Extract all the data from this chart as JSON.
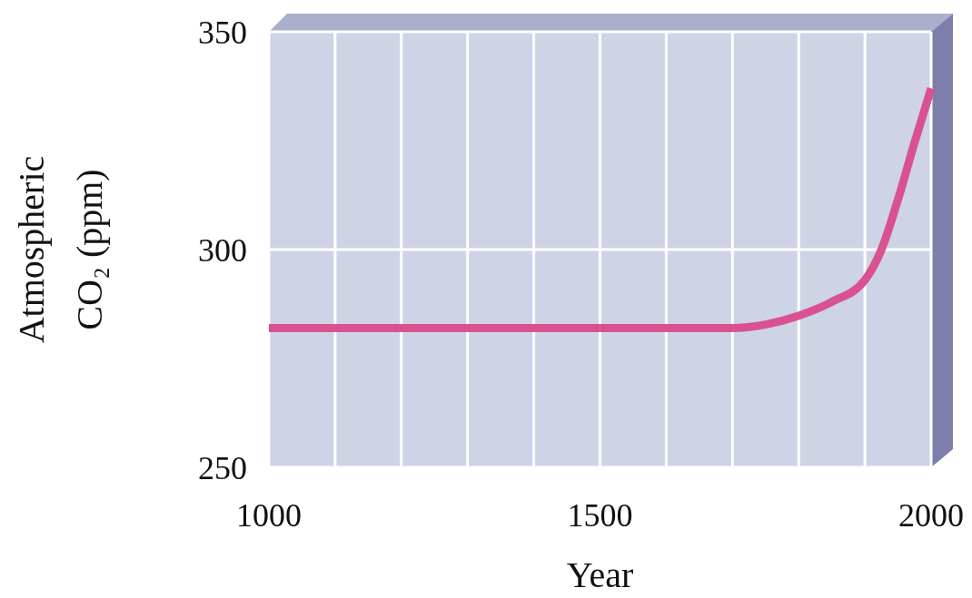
{
  "chart_data": {
    "type": "line",
    "xlabel": "Year",
    "ylabel": "Atmospheric CO₂ (ppm)",
    "x": [
      1000,
      1700,
      1750,
      1800,
      1850,
      1900,
      1925,
      1950,
      1975,
      2000
    ],
    "series": [
      {
        "color": "#d9528f",
        "values": [
          282,
          282,
          282.8,
          284.8,
          288,
          293,
          300,
          311.5,
          324.6,
          337
        ]
      }
    ],
    "xlim": [
      1000,
      2000
    ],
    "ylim": [
      250,
      350
    ],
    "xticks": [
      1000,
      {
        "value": 1100,
        "label": null
      },
      {
        "value": 1200,
        "label": null
      },
      {
        "value": 1300,
        "label": null
      },
      {
        "value": 1400,
        "label": null
      },
      1500,
      {
        "value": 1600,
        "label": null
      },
      {
        "value": 1700,
        "label": null
      },
      {
        "value": 1800,
        "label": null
      },
      {
        "value": 1900,
        "label": null
      },
      2000
    ],
    "yticks": [
      250,
      300,
      350
    ],
    "grid": true,
    "marker": "none",
    "line_style": "solid"
  }
}
